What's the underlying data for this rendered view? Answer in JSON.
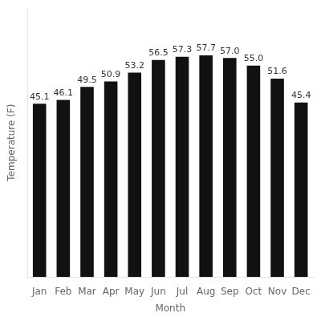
{
  "chart_data": {
    "type": "bar",
    "categories": [
      "Jan",
      "Feb",
      "Mar",
      "Apr",
      "May",
      "Jun",
      "Jul",
      "Aug",
      "Sep",
      "Oct",
      "Nov",
      "Dec"
    ],
    "values": [
      45.1,
      46.1,
      49.5,
      50.9,
      53.2,
      56.5,
      57.3,
      57.7,
      57.0,
      55.0,
      51.6,
      45.4
    ],
    "value_labels": [
      "45.1",
      "46.1",
      "49.5",
      "50.9",
      "53.2",
      "56.5",
      "57.3",
      "57.7",
      "57.0",
      "55.0",
      "51.6",
      "45.4"
    ],
    "color": "#111111",
    "x_label": "Month",
    "y_label": "Temperature (F)",
    "ylim": [
      0,
      70
    ],
    "grid": false,
    "data_labels": true,
    "tick_labels": "x"
  }
}
